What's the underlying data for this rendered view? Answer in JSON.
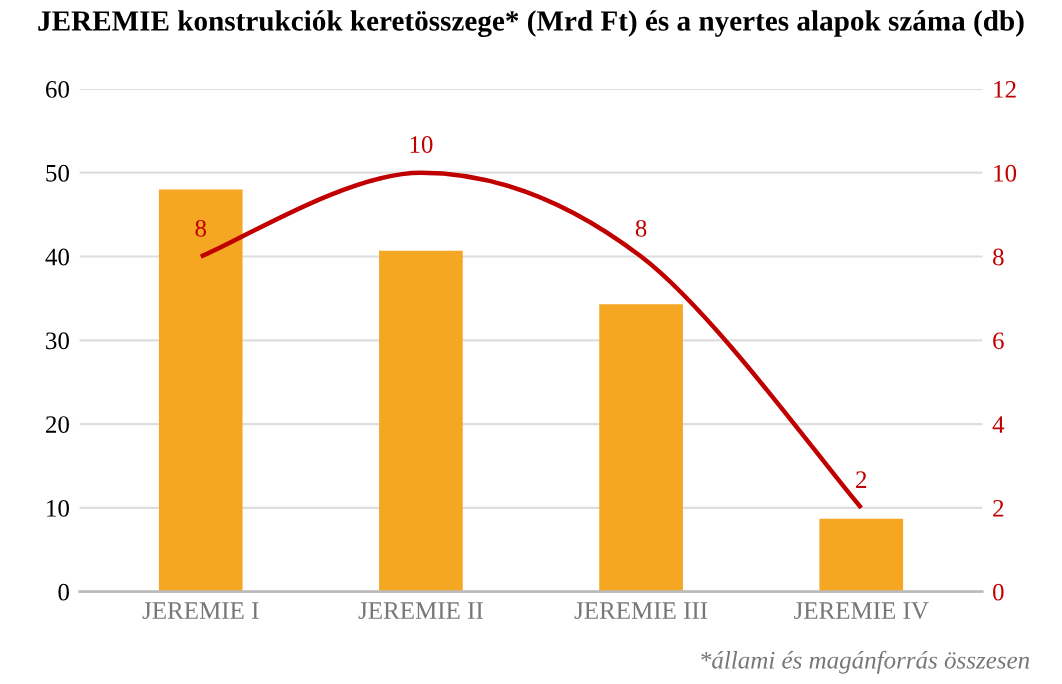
{
  "chart_data": {
    "type": "bar",
    "title": "JEREMIE konstrukciók keretösszege* (Mrd Ft) és a nyertes alapok száma (db)",
    "categories": [
      "JEREMIE I",
      "JEREMIE II",
      "JEREMIE III",
      "JEREMIE IV"
    ],
    "series": [
      {
        "color": "#f5a623",
        "values": [
          48,
          40.7,
          34.3,
          8.7
        ]
      },
      {
        "type": "line",
        "axis": "y2",
        "color": "#c00000",
        "values": [
          8,
          10,
          8,
          2
        ],
        "value_labels": [
          "8",
          "10",
          "8",
          "2"
        ],
        "marker": "none",
        "line_style": "solid"
      }
    ],
    "ylim": [
      0,
      60
    ],
    "yticks": [
      0,
      10,
      20,
      30,
      40,
      50,
      60
    ],
    "y2lim": [
      0,
      12
    ],
    "y2ticks": [
      0,
      2,
      4,
      6,
      8,
      10,
      12
    ],
    "grid": "y",
    "legend": false,
    "annotations": [
      "*állami és magánforrás összesen"
    ]
  }
}
